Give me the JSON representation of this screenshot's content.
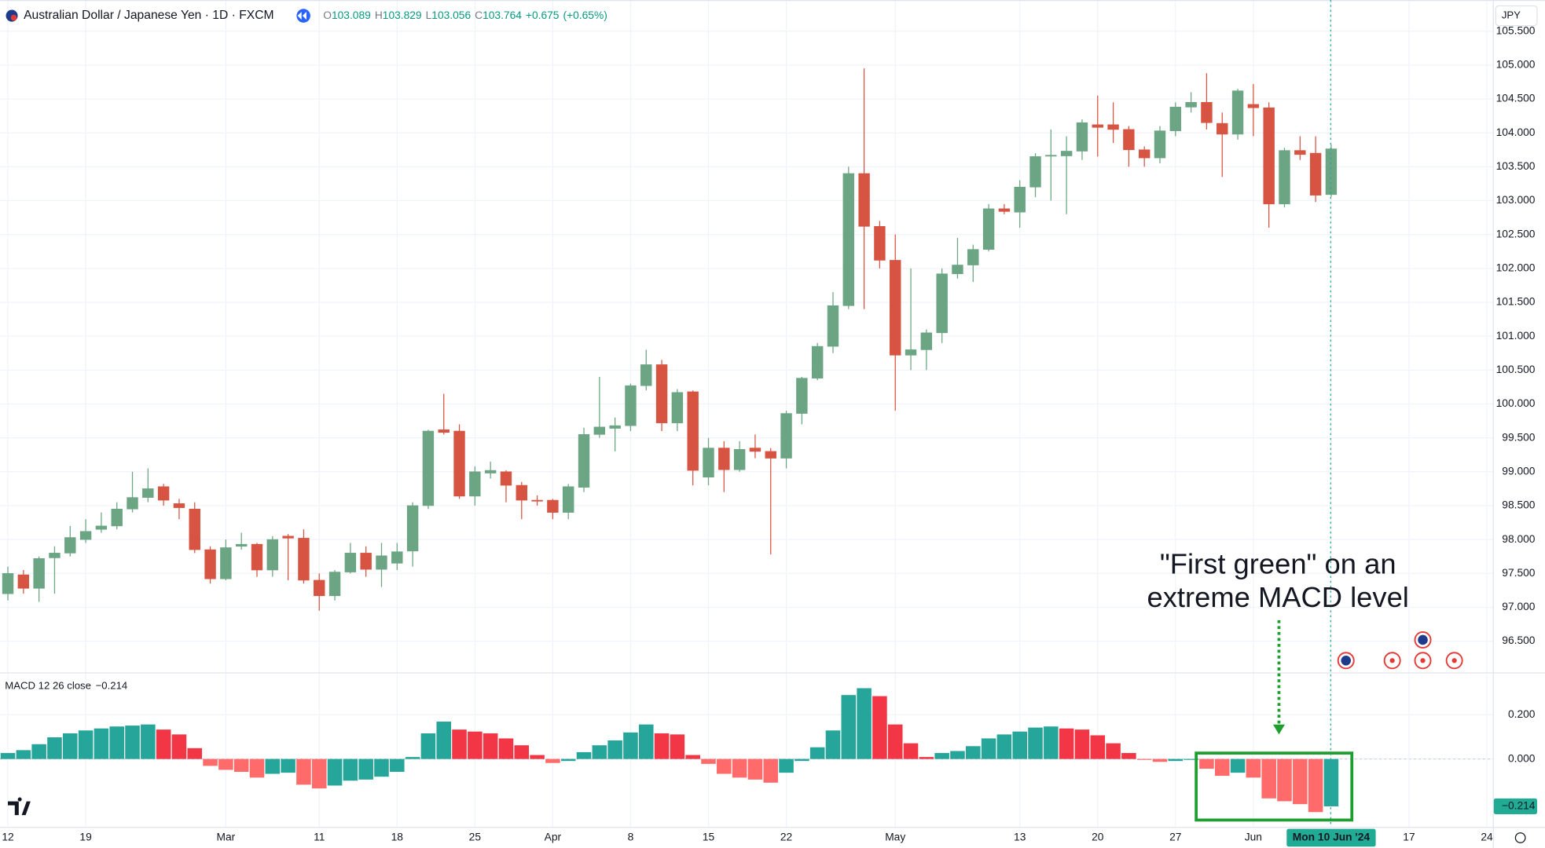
{
  "header": {
    "symbol": "Australian Dollar / Japanese Yen · 1D · FXCM",
    "o": "O",
    "h": "H",
    "l": "L",
    "c": "C",
    "change": "+0.675",
    "change_pct": "(+0.65%)",
    "currency": "JPY"
  },
  "chart_data": [
    {
      "type": "candlestick",
      "categories": [
        "12",
        null,
        null,
        null,
        null,
        "19",
        null,
        null,
        null,
        null,
        null,
        null,
        null,
        null,
        "Mar",
        null,
        null,
        null,
        null,
        null,
        "11",
        null,
        null,
        null,
        null,
        "18",
        null,
        null,
        null,
        null,
        "25",
        null,
        null,
        null,
        null,
        "Apr",
        null,
        null,
        null,
        null,
        "8",
        null,
        null,
        null,
        null,
        "15",
        null,
        null,
        null,
        null,
        "22",
        null,
        null,
        null,
        null,
        null,
        null,
        "May",
        null,
        null,
        null,
        null,
        null,
        null,
        null,
        "13",
        null,
        null,
        null,
        null,
        "20",
        null,
        null,
        null,
        null,
        "27",
        null,
        null,
        null,
        null,
        "Jun",
        null,
        null,
        null,
        null,
        "Mon 10 Jun '24",
        null,
        null,
        null,
        null,
        "17",
        null,
        null,
        null,
        null,
        "24"
      ],
      "open": [
        97.2,
        97.48,
        97.28,
        97.73,
        97.8,
        98.0,
        98.15,
        98.2,
        98.45,
        98.62,
        98.78,
        98.53,
        98.45,
        97.85,
        97.42,
        97.9,
        97.93,
        97.55,
        98.05,
        98.02,
        97.4,
        97.17,
        97.52,
        97.8,
        97.56,
        97.65,
        97.83,
        98.5,
        99.62,
        99.6,
        98.64,
        98.98,
        99.0,
        98.8,
        98.58,
        98.58,
        98.4,
        98.77,
        99.55,
        99.64,
        99.68,
        100.27,
        100.58,
        99.72,
        100.18,
        98.92,
        99.35,
        99.03,
        99.35,
        99.3,
        99.2,
        99.86,
        100.38,
        100.85,
        101.45,
        103.4,
        102.62,
        102.12,
        100.72,
        100.8,
        101.05,
        101.92,
        102.05,
        102.28,
        102.88,
        102.83,
        103.2,
        103.66,
        103.66,
        103.73,
        104.12,
        104.12,
        104.05,
        103.75,
        103.63,
        104.03,
        104.38,
        104.45,
        104.14,
        103.98,
        104.42,
        104.37,
        102.95,
        103.74,
        103.7,
        103.089,
        null,
        null,
        null,
        null,
        null,
        null,
        null,
        null,
        null,
        null
      ],
      "high": [
        97.6,
        97.55,
        97.75,
        97.9,
        98.2,
        98.3,
        98.4,
        98.55,
        99.0,
        99.05,
        98.82,
        98.6,
        98.55,
        97.9,
        98.0,
        98.1,
        97.95,
        98.05,
        98.08,
        98.15,
        97.5,
        97.55,
        97.95,
        97.9,
        97.95,
        97.95,
        98.55,
        99.62,
        100.15,
        99.7,
        99.08,
        99.15,
        99.02,
        98.85,
        98.65,
        98.6,
        98.82,
        99.65,
        100.4,
        99.8,
        100.3,
        100.8,
        100.65,
        100.22,
        100.2,
        99.5,
        99.45,
        99.45,
        99.55,
        99.35,
        99.9,
        100.4,
        100.9,
        101.65,
        103.5,
        104.95,
        102.7,
        102.5,
        102.0,
        101.1,
        102.0,
        102.45,
        102.35,
        102.95,
        102.95,
        103.3,
        103.7,
        104.05,
        103.95,
        104.2,
        104.55,
        104.45,
        104.1,
        103.8,
        104.1,
        104.45,
        104.6,
        104.88,
        104.3,
        104.65,
        104.72,
        104.45,
        103.78,
        103.95,
        103.95,
        103.829,
        null,
        null,
        null,
        null,
        null,
        null,
        null,
        null,
        null,
        null
      ],
      "low": [
        97.1,
        97.2,
        97.08,
        97.2,
        97.75,
        97.95,
        98.1,
        98.15,
        98.4,
        98.55,
        98.5,
        98.3,
        97.8,
        97.35,
        97.4,
        97.85,
        97.45,
        97.45,
        97.4,
        97.35,
        96.95,
        97.1,
        97.5,
        97.45,
        97.3,
        97.55,
        97.6,
        98.45,
        99.55,
        98.6,
        98.5,
        98.9,
        98.55,
        98.3,
        98.5,
        98.3,
        98.3,
        98.7,
        99.5,
        99.3,
        99.6,
        100.2,
        99.6,
        99.6,
        98.8,
        98.8,
        98.7,
        99.0,
        99.2,
        97.78,
        99.05,
        99.7,
        100.35,
        100.75,
        101.4,
        101.4,
        102.0,
        99.9,
        100.5,
        100.5,
        100.9,
        101.85,
        101.8,
        102.25,
        102.8,
        102.6,
        103.05,
        103.0,
        102.8,
        103.6,
        103.65,
        103.85,
        103.5,
        103.5,
        103.55,
        103.95,
        104.3,
        104.05,
        103.35,
        103.9,
        103.95,
        102.6,
        102.9,
        103.6,
        102.98,
        103.056,
        null,
        null,
        null,
        null,
        null,
        null,
        null,
        null,
        null,
        null
      ],
      "close": [
        97.5,
        97.28,
        97.72,
        97.8,
        98.03,
        98.12,
        98.2,
        98.45,
        98.62,
        98.75,
        98.58,
        98.47,
        97.85,
        97.42,
        97.88,
        97.93,
        97.55,
        98.0,
        98.02,
        97.4,
        97.17,
        97.52,
        97.8,
        97.56,
        97.76,
        97.82,
        98.5,
        99.6,
        99.58,
        98.64,
        99.0,
        99.02,
        98.8,
        98.58,
        98.57,
        98.4,
        98.78,
        99.55,
        99.66,
        99.68,
        100.27,
        100.58,
        99.72,
        100.17,
        99.02,
        99.35,
        99.03,
        99.33,
        99.3,
        99.2,
        99.86,
        100.38,
        100.85,
        101.45,
        103.4,
        102.62,
        102.12,
        100.72,
        100.8,
        101.05,
        101.92,
        102.05,
        102.28,
        102.88,
        102.84,
        103.2,
        103.65,
        103.67,
        103.73,
        104.15,
        104.08,
        104.05,
        103.75,
        103.63,
        104.03,
        104.38,
        104.45,
        104.15,
        103.98,
        104.62,
        104.37,
        102.95,
        103.74,
        103.68,
        103.08,
        103.764,
        null,
        null,
        null,
        null,
        null,
        null,
        null,
        null,
        null,
        null
      ],
      "up_color": "#6ba583",
      "down_color": "#d75442",
      "ylim": [
        96.04,
        105.96
      ],
      "yticks": [
        {
          "value": 105.5,
          "label": "105.500"
        },
        {
          "value": 105,
          "label": "105.000"
        },
        {
          "value": 104.5,
          "label": "104.500"
        },
        {
          "value": 104,
          "label": "104.000"
        },
        {
          "value": 103.5,
          "label": "103.500"
        },
        {
          "value": 103,
          "label": "103.000"
        },
        {
          "value": 102.5,
          "label": "102.500"
        },
        {
          "value": 102,
          "label": "102.000"
        },
        {
          "value": 101.5,
          "label": "101.500"
        },
        {
          "value": 101,
          "label": "101.000"
        },
        {
          "value": 100.5,
          "label": "100.500"
        },
        {
          "value": 100,
          "label": "100.000"
        },
        {
          "value": 99.5,
          "label": "99.500"
        },
        {
          "value": 99,
          "label": "99.000"
        },
        {
          "value": 98.5,
          "label": "98.500"
        },
        {
          "value": 98,
          "label": "98.000"
        },
        {
          "value": 97.5,
          "label": "97.500"
        },
        {
          "value": 97,
          "label": "97.000"
        },
        {
          "value": 96.5,
          "label": "96.500"
        }
      ],
      "grid": true,
      "annotation": [
        "\"First green\" on an",
        "extreme MACD level"
      ],
      "annotation_color": "#1e9e2e"
    },
    {
      "type": "bar",
      "title": "MACD 12 26 close",
      "values": [
        0.027,
        0.04,
        0.067,
        0.098,
        0.116,
        0.129,
        0.138,
        0.147,
        0.151,
        0.156,
        0.133,
        0.111,
        0.049,
        -0.031,
        -0.049,
        -0.058,
        -0.084,
        -0.067,
        -0.062,
        -0.116,
        -0.133,
        -0.12,
        -0.098,
        -0.093,
        -0.08,
        -0.058,
        0.009,
        0.116,
        0.169,
        0.133,
        0.124,
        0.116,
        0.093,
        0.062,
        0.018,
        -0.018,
        -0.009,
        0.031,
        0.062,
        0.084,
        0.12,
        0.156,
        0.116,
        0.111,
        0.018,
        -0.022,
        -0.067,
        -0.084,
        -0.093,
        -0.107,
        -0.062,
        -0.009,
        0.053,
        0.129,
        0.289,
        0.32,
        0.284,
        0.156,
        0.071,
        0.009,
        0.027,
        0.036,
        0.058,
        0.093,
        0.111,
        0.124,
        0.142,
        0.147,
        0.138,
        0.133,
        0.107,
        0.071,
        0.027,
        -0.004,
        -0.013,
        -0.009,
        -0.004,
        -0.044,
        -0.076,
        -0.062,
        -0.084,
        -0.178,
        -0.191,
        -0.204,
        -0.24,
        -0.214,
        null,
        null,
        null,
        null,
        null,
        null,
        null,
        null,
        null,
        null
      ],
      "value_labels": [
        null,
        null,
        null,
        null,
        null,
        null,
        null,
        null,
        null,
        null,
        null,
        null,
        null,
        null,
        null,
        null,
        null,
        null,
        null,
        null,
        null,
        null,
        null,
        null,
        null,
        null,
        null,
        null,
        null,
        null,
        null,
        null,
        null,
        null,
        null,
        null,
        null,
        null,
        null,
        null,
        null,
        null,
        null,
        null,
        null,
        null,
        null,
        null,
        null,
        null,
        null,
        null,
        null,
        null,
        null,
        null,
        null,
        null,
        null,
        null,
        null,
        null,
        null,
        null,
        null,
        null,
        null,
        null,
        null,
        null,
        null,
        null,
        null,
        null,
        null,
        null,
        null,
        null,
        null,
        null,
        null,
        null,
        null,
        null,
        null,
        "−0.214",
        null,
        null,
        null,
        null,
        null,
        null,
        null,
        null,
        null,
        null
      ],
      "colors": [
        "#26a69a",
        "#26a69a",
        "#26a69a",
        "#26a69a",
        "#26a69a",
        "#26a69a",
        "#26a69a",
        "#26a69a",
        "#26a69a",
        "#26a69a",
        "#f23645",
        "#f23645",
        "#f23645",
        "#ff6b6b",
        "#ff6b6b",
        "#ff6b6b",
        "#ff6b6b",
        "#26a69a",
        "#26a69a",
        "#ff6b6b",
        "#ff6b6b",
        "#26a69a",
        "#26a69a",
        "#26a69a",
        "#26a69a",
        "#26a69a",
        "#26a69a",
        "#26a69a",
        "#26a69a",
        "#f23645",
        "#f23645",
        "#f23645",
        "#f23645",
        "#f23645",
        "#f23645",
        "#ff6b6b",
        "#26a69a",
        "#26a69a",
        "#26a69a",
        "#26a69a",
        "#26a69a",
        "#26a69a",
        "#f23645",
        "#f23645",
        "#f23645",
        "#ff6b6b",
        "#ff6b6b",
        "#ff6b6b",
        "#ff6b6b",
        "#ff6b6b",
        "#26a69a",
        "#26a69a",
        "#26a69a",
        "#26a69a",
        "#26a69a",
        "#26a69a",
        "#f23645",
        "#f23645",
        "#f23645",
        "#f23645",
        "#26a69a",
        "#26a69a",
        "#26a69a",
        "#26a69a",
        "#26a69a",
        "#26a69a",
        "#26a69a",
        "#26a69a",
        "#f23645",
        "#f23645",
        "#f23645",
        "#f23645",
        "#f23645",
        "#ff6b6b",
        "#ff6b6b",
        "#26a69a",
        "#26a69a",
        "#ff6b6b",
        "#ff6b6b",
        "#26a69a",
        "#ff6b6b",
        "#ff6b6b",
        "#ff6b6b",
        "#ff6b6b",
        "#ff6b6b",
        "#26a69a",
        null,
        null,
        null,
        null,
        null,
        null,
        null,
        null,
        null,
        null
      ],
      "ylim": [
        -0.307,
        0.387
      ],
      "yticks": [
        {
          "value": 0.2,
          "label": "0.200"
        },
        {
          "value": 0,
          "label": "0.000"
        }
      ],
      "label_color": "#22ab94"
    }
  ]
}
